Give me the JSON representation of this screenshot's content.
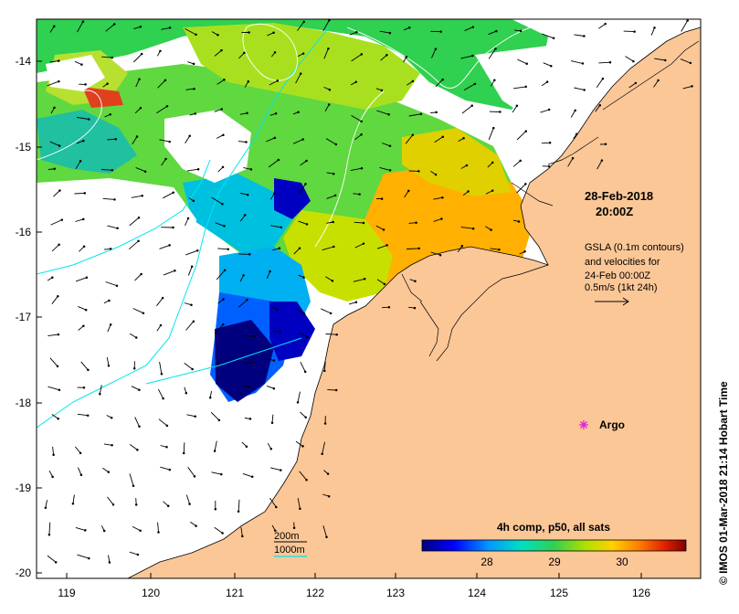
{
  "map": {
    "lon_ticks": [
      "119",
      "120",
      "121",
      "122",
      "123",
      "124",
      "125",
      "126"
    ],
    "lat_ticks": [
      "-14",
      "-15",
      "-16",
      "-17",
      "-18",
      "-19",
      "-20"
    ],
    "timestamp": {
      "date": "28-Feb-2018",
      "time": "20:00Z"
    },
    "gsla_note": {
      "line1": "GSLA (0.1m contours)",
      "line2": "and velocities for",
      "line3": "24-Feb 00:00Z",
      "line4": "0.5m/s (1kt 24h)"
    },
    "argo_label": "Argo",
    "isobath_legend": {
      "shallow": "200m",
      "deep": "1000m"
    },
    "colorbar": {
      "title": "4h comp, p50, all sats",
      "ticks": [
        "28",
        "29",
        "30"
      ],
      "stops": [
        "#00007f",
        "#0000ff",
        "#0096ff",
        "#00e0c0",
        "#30d050",
        "#b0e000",
        "#ffd000",
        "#ff8000",
        "#e02000",
        "#800000"
      ]
    },
    "credit": "© IMOS 01-Mar-2018 21:14 Hobart Time",
    "colors": {
      "land": "#fcc797",
      "ocean": "#ffffff",
      "isobath": "#00e5ee",
      "contour": "#ffffff",
      "argo_marker": "#e020e0"
    }
  }
}
